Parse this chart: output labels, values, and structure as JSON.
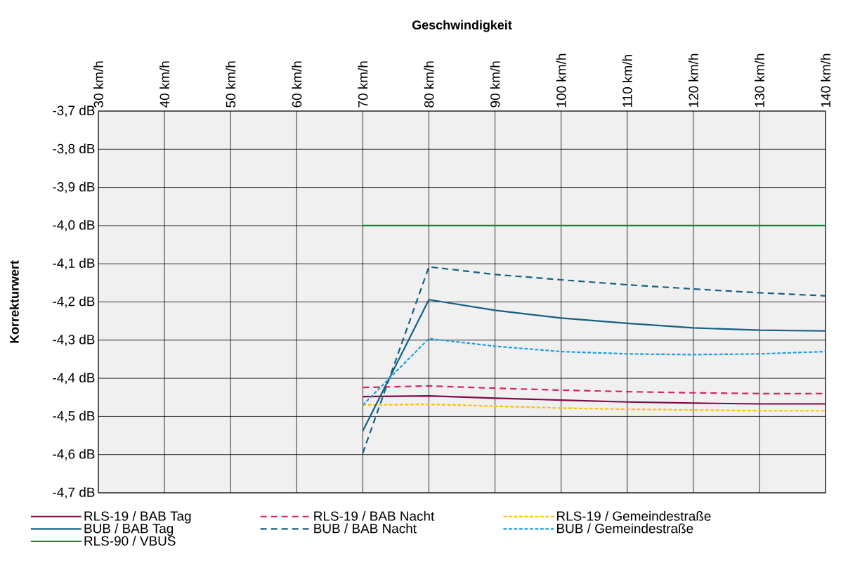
{
  "chart_data": {
    "type": "line",
    "xlabel": "Geschwindigkeit",
    "ylabel": "Korrekturwert",
    "xlim": [
      30,
      140
    ],
    "xticks": [
      {
        "value": 30,
        "label": "30 km/h"
      },
      {
        "value": 40,
        "label": "40 km/h"
      },
      {
        "value": 50,
        "label": "50 km/h"
      },
      {
        "value": 60,
        "label": "60 km/h"
      },
      {
        "value": 70,
        "label": "70 km/h"
      },
      {
        "value": 80,
        "label": "80 km/h"
      },
      {
        "value": 90,
        "label": "90 km/h"
      },
      {
        "value": 100,
        "label": "100 km/h"
      },
      {
        "value": 110,
        "label": "110 km/h"
      },
      {
        "value": 120,
        "label": "120 km/h"
      },
      {
        "value": 130,
        "label": "130 km/h"
      },
      {
        "value": 140,
        "label": "140 km/h"
      }
    ],
    "ylim": [
      -4.7,
      -3.7
    ],
    "yticks": [
      {
        "value": -3.7,
        "label": "-3,7 dB"
      },
      {
        "value": -3.8,
        "label": "-3,8 dB"
      },
      {
        "value": -3.9,
        "label": "-3,9 dB"
      },
      {
        "value": -4.0,
        "label": "-4,0 dB"
      },
      {
        "value": -4.1,
        "label": "-4,1 dB"
      },
      {
        "value": -4.2,
        "label": "-4,2 dB"
      },
      {
        "value": -4.3,
        "label": "-4,3 dB"
      },
      {
        "value": -4.4,
        "label": "-4,4 dB"
      },
      {
        "value": -4.5,
        "label": "-4,5 dB"
      },
      {
        "value": -4.6,
        "label": "-4,6 dB"
      },
      {
        "value": -4.7,
        "label": "-4,7 dB"
      }
    ],
    "grid": true,
    "legend": "bottom",
    "marker": "none",
    "x": [
      70,
      80,
      90,
      100,
      110,
      120,
      130,
      140
    ],
    "series": [
      {
        "name": "RLS-19 / BAB Tag",
        "color": "#7f0a45",
        "line_style": "solid",
        "values": [
          -4.448,
          -4.446,
          -4.452,
          -4.457,
          -4.462,
          -4.465,
          -4.467,
          -4.467
        ]
      },
      {
        "name": "RLS-19 / BAB Nacht",
        "color": "#d6255f",
        "line_style": "dashed",
        "values": [
          -4.424,
          -4.42,
          -4.426,
          -4.431,
          -4.435,
          -4.438,
          -4.44,
          -4.44
        ]
      },
      {
        "name": "RLS-19 / Gemeindestraße",
        "color": "#ffc000",
        "line_style": "dotted",
        "values": [
          -4.47,
          -4.468,
          -4.473,
          -4.478,
          -4.481,
          -4.483,
          -4.485,
          -4.485
        ]
      },
      {
        "name": "BUB / BAB Tag",
        "color": "#156082",
        "line_style": "solid",
        "values": [
          -4.538,
          -4.194,
          -4.222,
          -4.242,
          -4.256,
          -4.268,
          -4.274,
          -4.276
        ]
      },
      {
        "name": "BUB / BAB Nacht",
        "color": "#156082",
        "line_style": "dashed",
        "values": [
          -4.596,
          -4.108,
          -4.128,
          -4.142,
          -4.155,
          -4.166,
          -4.176,
          -4.184
        ]
      },
      {
        "name": "BUB / Gemeindestraße",
        "color": "#1f9fe0",
        "line_style": "dotted",
        "values": [
          -4.47,
          -4.296,
          -4.316,
          -4.33,
          -4.336,
          -4.338,
          -4.336,
          -4.33
        ]
      },
      {
        "name": "RLS-90 / VBUS",
        "color": "#138a36",
        "line_style": "solid",
        "values": [
          -4.0,
          -4.0,
          -4.0,
          -4.0,
          -4.0,
          -4.0,
          -4.0,
          -4.0
        ]
      }
    ]
  }
}
